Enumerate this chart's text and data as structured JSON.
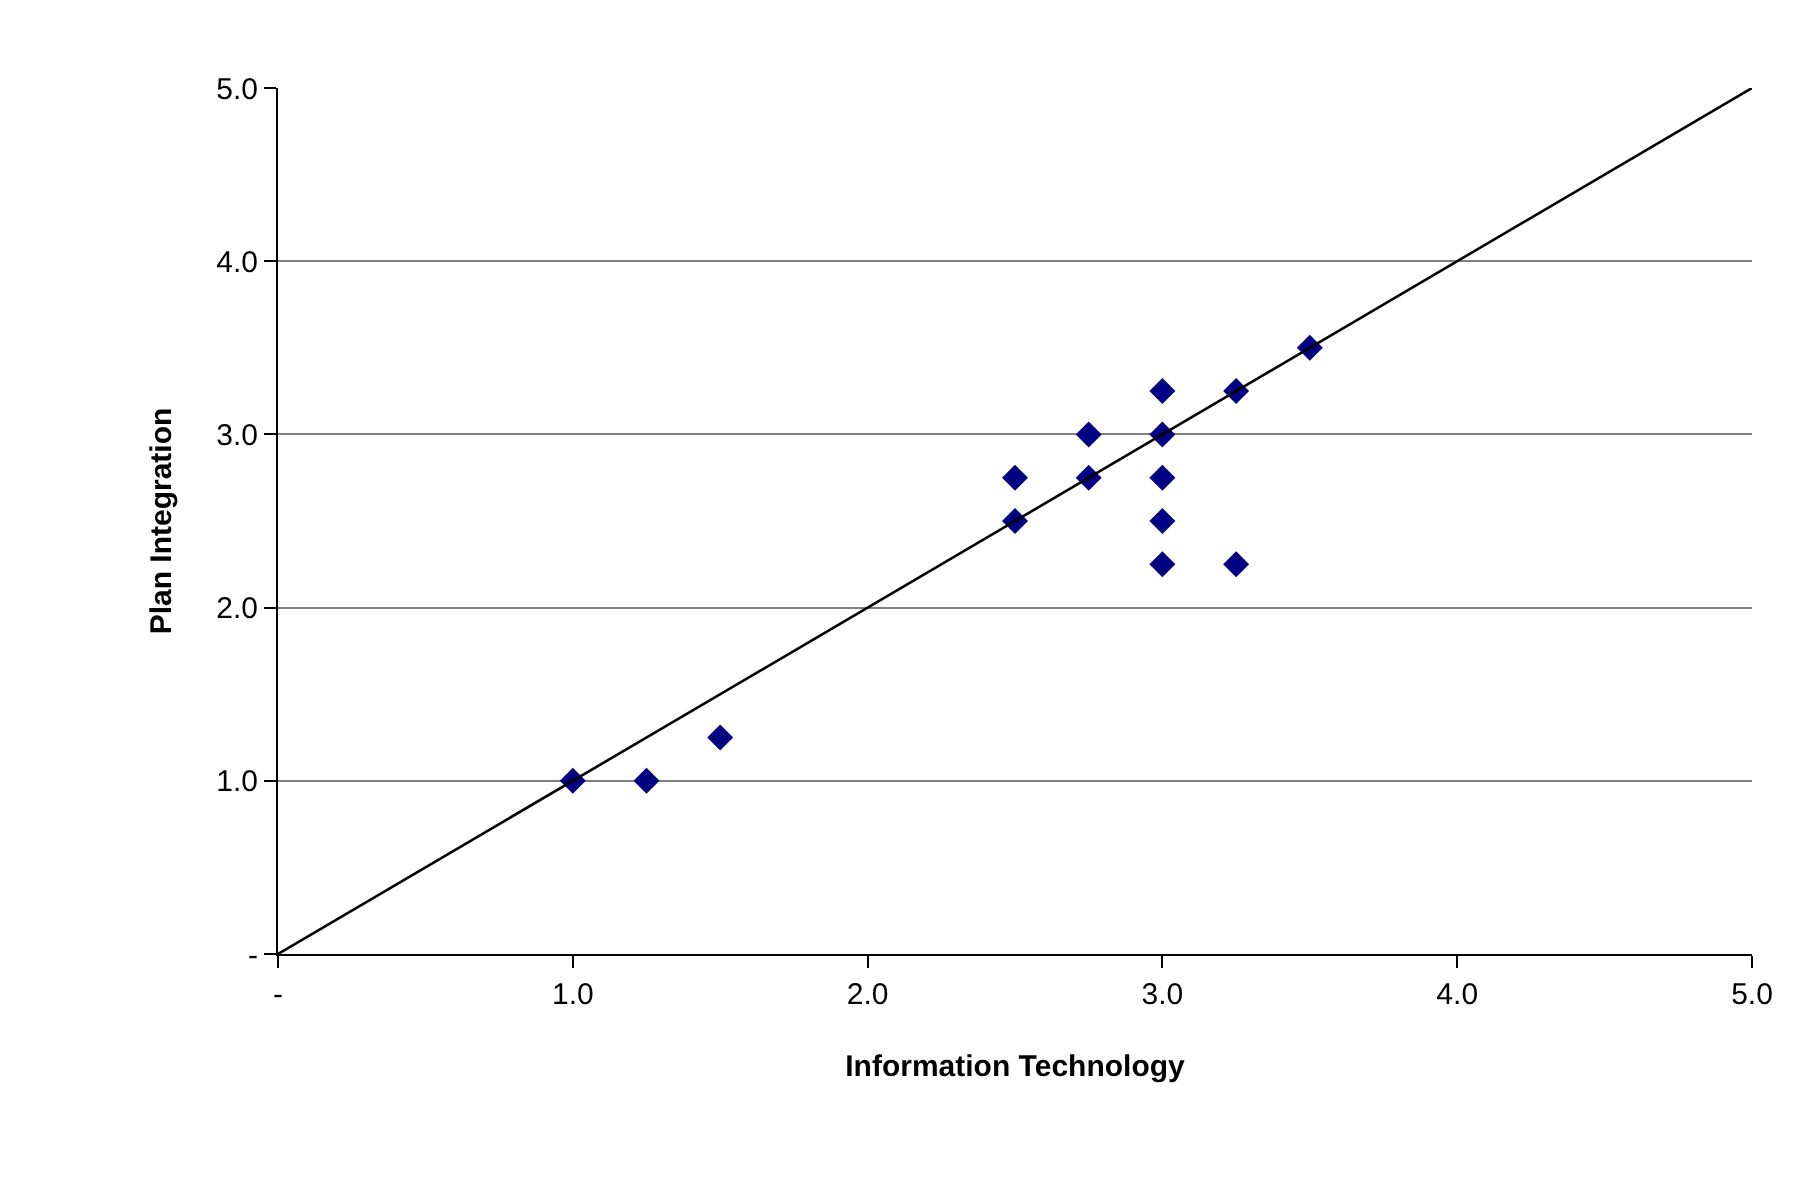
{
  "chart_data": {
    "type": "scatter",
    "xlabel": "Information Technology",
    "ylabel": "Plan Integration",
    "xlim": [
      0,
      5
    ],
    "ylim": [
      0,
      5
    ],
    "xticks": [
      {
        "value": 0,
        "label": "-"
      },
      {
        "value": 1,
        "label": "1.0"
      },
      {
        "value": 2,
        "label": "2.0"
      },
      {
        "value": 3,
        "label": "3.0"
      },
      {
        "value": 4,
        "label": "4.0"
      },
      {
        "value": 5,
        "label": "5.0"
      }
    ],
    "yticks": [
      {
        "value": 0,
        "label": "-"
      },
      {
        "value": 1,
        "label": "1.0"
      },
      {
        "value": 2,
        "label": "2.0"
      },
      {
        "value": 3,
        "label": "3.0"
      },
      {
        "value": 4,
        "label": "4.0"
      },
      {
        "value": 5,
        "label": "5.0"
      }
    ],
    "grid": "y",
    "legend": false,
    "marker": "diamond",
    "series": [
      {
        "color": "#000080",
        "x": [
          1,
          1.25,
          1.5,
          2.5,
          2.5,
          2.75,
          2.75,
          3,
          3,
          3,
          3,
          3,
          3.25,
          3.25,
          3.5
        ],
        "values": [
          1,
          1,
          1.25,
          2.75,
          2.5,
          3,
          2.75,
          3.25,
          3,
          2.75,
          2.5,
          2.25,
          3.25,
          2.25,
          3.5
        ]
      },
      {
        "type": "line",
        "marker": "none",
        "color": "#000000",
        "x": [
          0,
          5
        ],
        "values": [
          0,
          5
        ]
      }
    ]
  }
}
